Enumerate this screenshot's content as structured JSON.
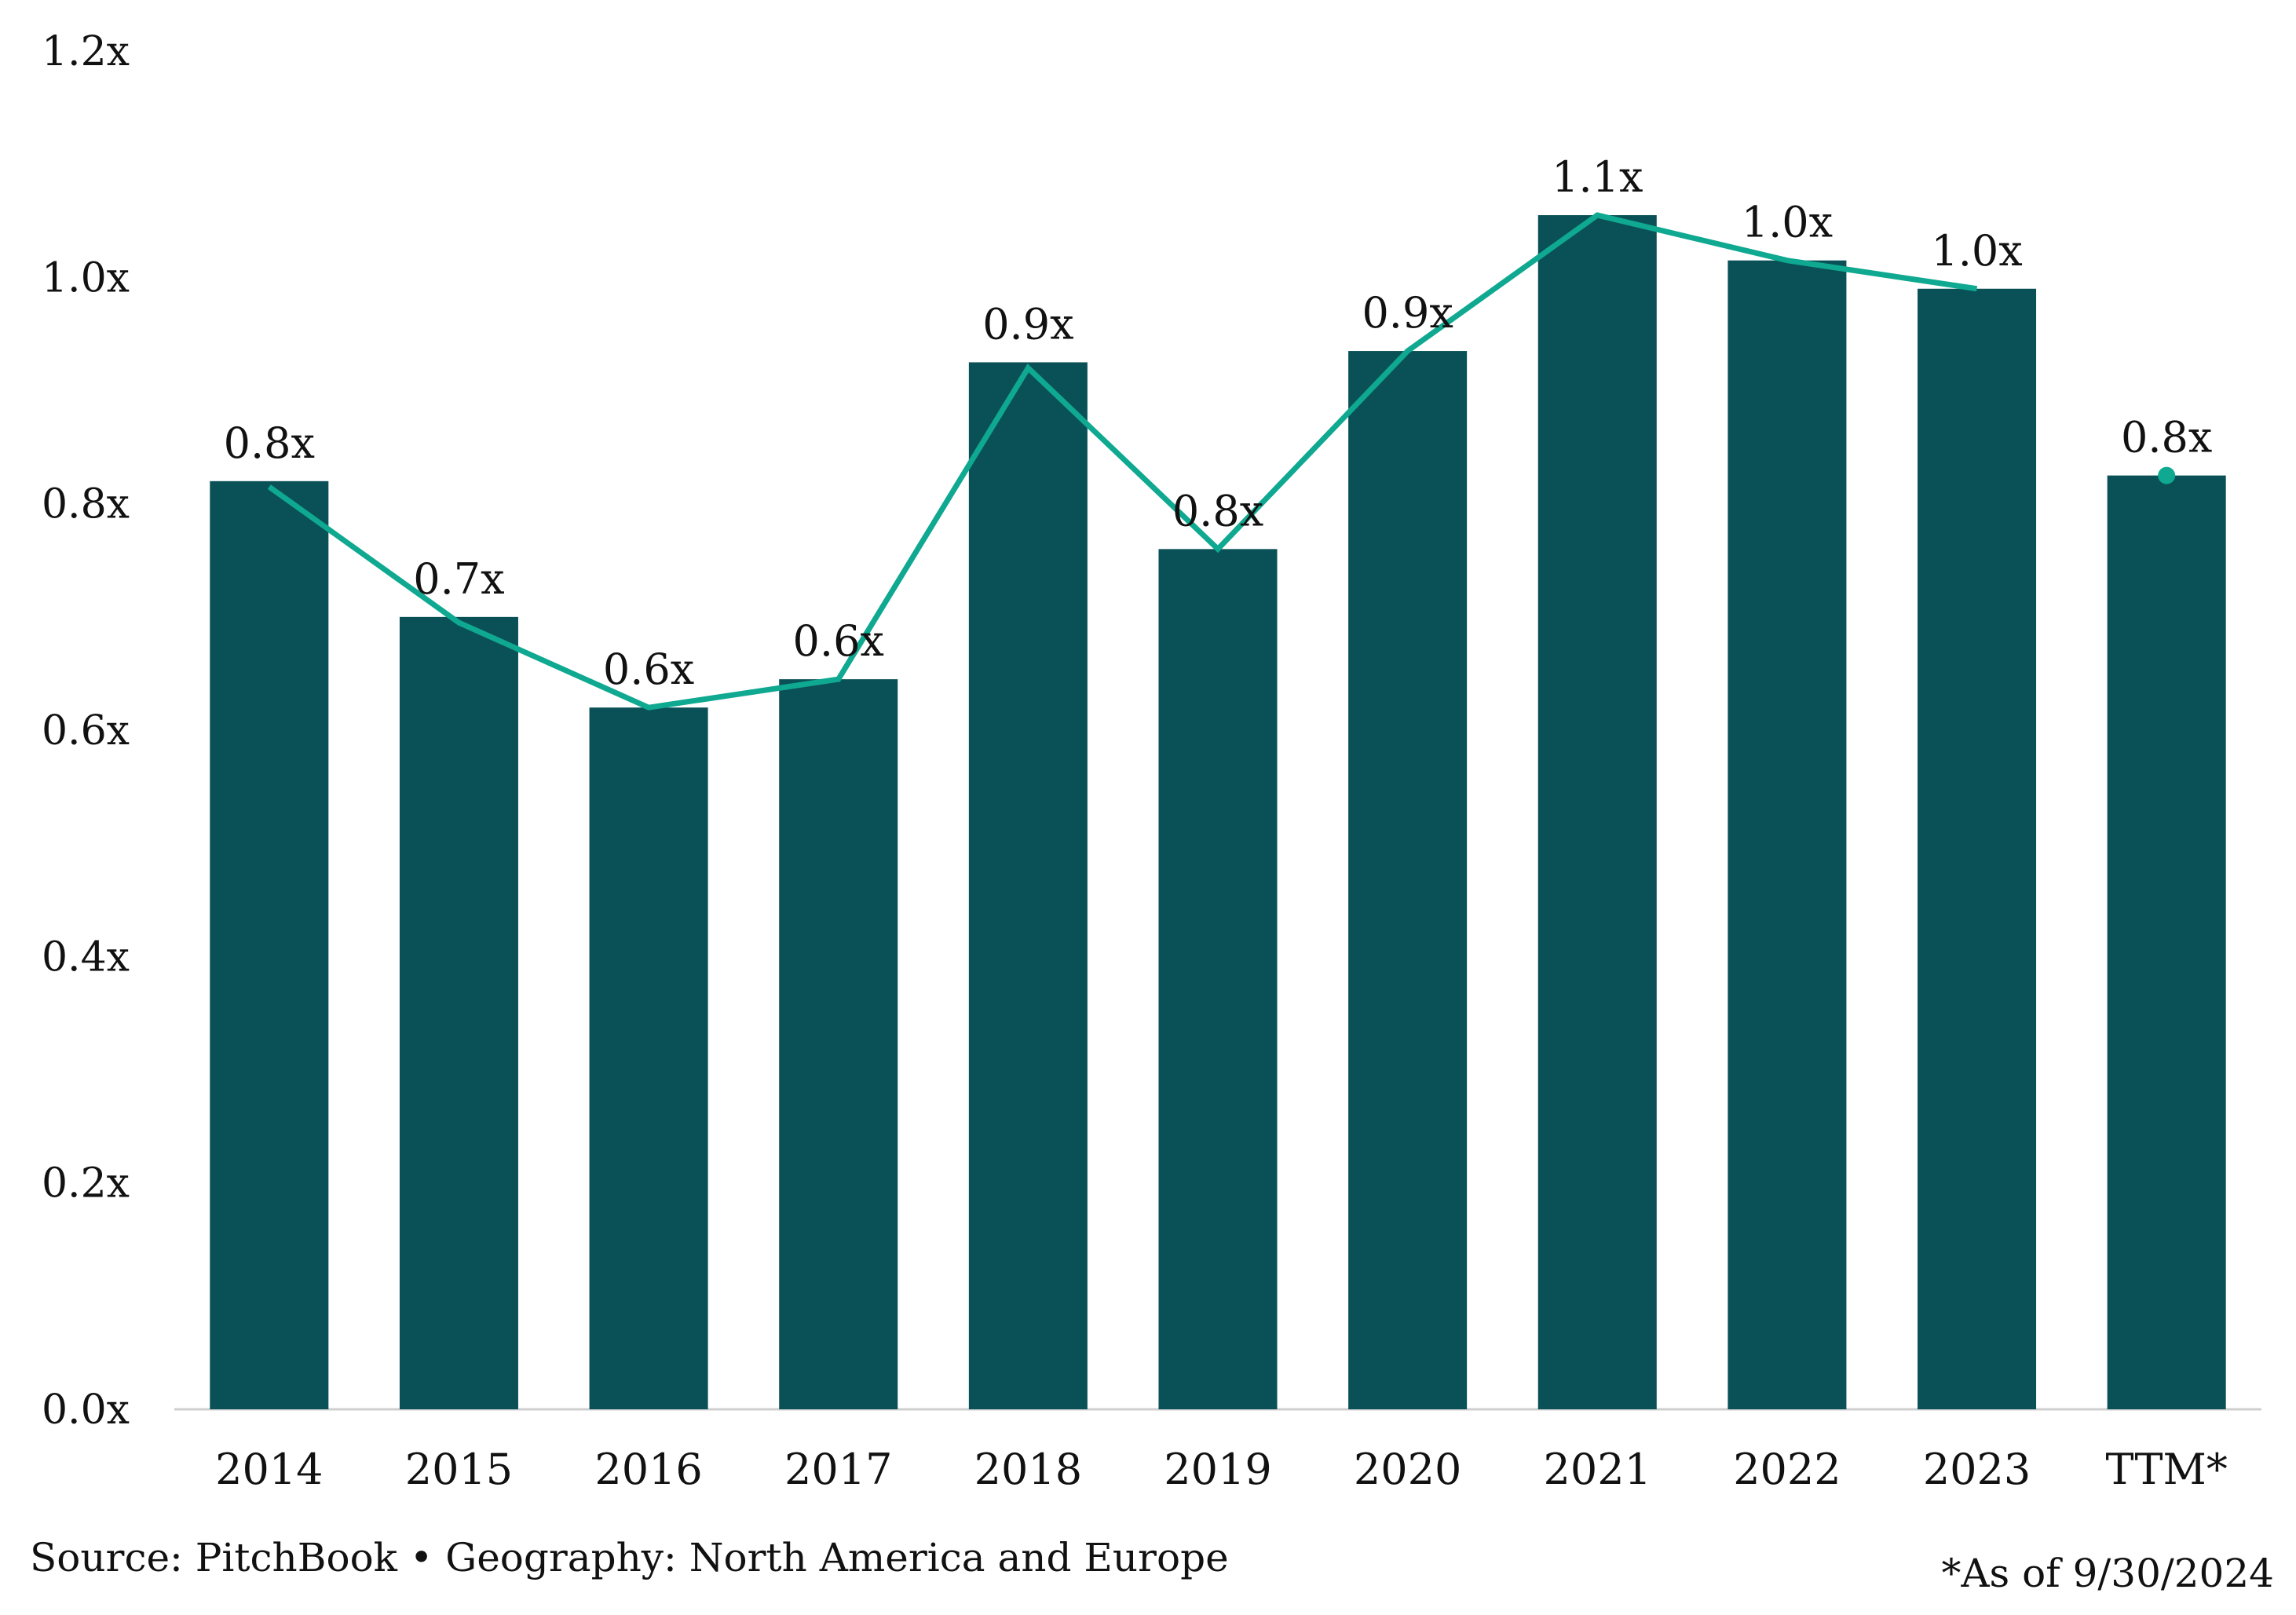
{
  "chart_data": {
    "type": "bar",
    "categories": [
      "2014",
      "2015",
      "2016",
      "2017",
      "2018",
      "2019",
      "2020",
      "2021",
      "2022",
      "2023",
      "TTM*"
    ],
    "series": [
      {
        "type": "bar",
        "values": [
          0.82,
          0.7,
          0.62,
          0.645,
          0.925,
          0.76,
          0.935,
          1.055,
          1.015,
          0.99,
          0.825
        ],
        "labels": [
          "0.8x",
          "0.7x",
          "0.6x",
          "0.6x",
          "0.9x",
          "0.8x",
          "0.9x",
          "1.1x",
          "1.0x",
          "1.0x",
          "0.8x"
        ],
        "color": "#0a5157"
      },
      {
        "type": "line",
        "values": [
          0.815,
          0.695,
          0.62,
          0.645,
          0.92,
          0.76,
          0.935,
          1.055,
          1.015,
          0.99,
          0.825
        ],
        "color": "#0fa890"
      }
    ],
    "yticks": [
      "0.0x",
      "0.2x",
      "0.4x",
      "0.6x",
      "0.8x",
      "1.0x",
      "1.2x"
    ],
    "ylim": [
      0,
      1.2
    ],
    "title": "",
    "xlabel": "",
    "ylabel": "",
    "grid": false,
    "legend": "none"
  },
  "footer": {
    "source": "Source: PitchBook  •  Geography: North America and Europe",
    "note": "*As of 9/30/2024"
  }
}
